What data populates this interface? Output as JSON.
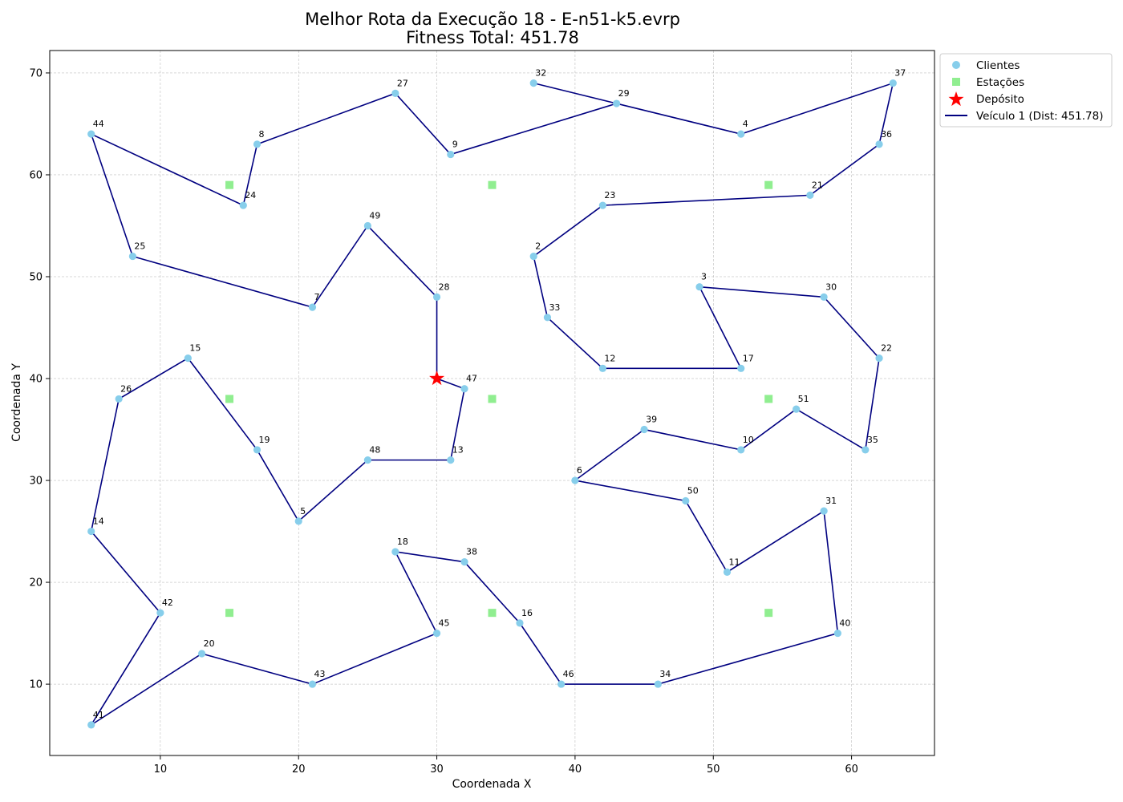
{
  "colors": {
    "clients": "#87ceeb",
    "stations": "#90ee90",
    "depot": "#ff0000",
    "route": "#000080",
    "grid": "#b0b0b0"
  },
  "chart_data": {
    "type": "scatter",
    "title_line1": "Melhor Rota da Execução 18 - E-n51-k5.evrp",
    "title_line2": "Fitness Total: 451.78",
    "xlabel": "Coordenada X",
    "ylabel": "Coordenada Y",
    "xlim": [
      2.0,
      66.0
    ],
    "ylim": [
      3.0,
      72.2
    ],
    "xticks": [
      10,
      20,
      30,
      40,
      50,
      60
    ],
    "yticks": [
      10,
      20,
      30,
      40,
      50,
      60,
      70
    ],
    "grid": true,
    "legend": {
      "placement": "outside-top-right",
      "entries": [
        {
          "key": "clients",
          "label": "Clientes"
        },
        {
          "key": "stations",
          "label": "Estações"
        },
        {
          "key": "depot",
          "label": "Depósito"
        },
        {
          "key": "route",
          "label": "Veículo 1 (Dist: 451.78)"
        }
      ]
    },
    "depot": {
      "x": 30,
      "y": 40
    },
    "stations": [
      {
        "x": 15,
        "y": 59
      },
      {
        "x": 34,
        "y": 59
      },
      {
        "x": 54,
        "y": 59
      },
      {
        "x": 15,
        "y": 38
      },
      {
        "x": 34,
        "y": 38
      },
      {
        "x": 54,
        "y": 38
      },
      {
        "x": 15,
        "y": 17
      },
      {
        "x": 34,
        "y": 17
      },
      {
        "x": 54,
        "y": 17
      }
    ],
    "clients": [
      {
        "id": "2",
        "x": 37,
        "y": 52
      },
      {
        "id": "3",
        "x": 49,
        "y": 49
      },
      {
        "id": "4",
        "x": 52,
        "y": 64
      },
      {
        "id": "5",
        "x": 20,
        "y": 26
      },
      {
        "id": "6",
        "x": 40,
        "y": 30
      },
      {
        "id": "7",
        "x": 21,
        "y": 47
      },
      {
        "id": "8",
        "x": 17,
        "y": 63
      },
      {
        "id": "9",
        "x": 31,
        "y": 62
      },
      {
        "id": "10",
        "x": 52,
        "y": 33
      },
      {
        "id": "11",
        "x": 51,
        "y": 21
      },
      {
        "id": "12",
        "x": 42,
        "y": 41
      },
      {
        "id": "13",
        "x": 31,
        "y": 32
      },
      {
        "id": "14",
        "x": 5,
        "y": 25
      },
      {
        "id": "15",
        "x": 12,
        "y": 42
      },
      {
        "id": "16",
        "x": 36,
        "y": 16
      },
      {
        "id": "17",
        "x": 52,
        "y": 41
      },
      {
        "id": "18",
        "x": 27,
        "y": 23
      },
      {
        "id": "19",
        "x": 17,
        "y": 33
      },
      {
        "id": "20",
        "x": 13,
        "y": 13
      },
      {
        "id": "21",
        "x": 57,
        "y": 58
      },
      {
        "id": "22",
        "x": 62,
        "y": 42
      },
      {
        "id": "23",
        "x": 42,
        "y": 57
      },
      {
        "id": "24",
        "x": 16,
        "y": 57
      },
      {
        "id": "25",
        "x": 8,
        "y": 52
      },
      {
        "id": "26",
        "x": 7,
        "y": 38
      },
      {
        "id": "27",
        "x": 27,
        "y": 68
      },
      {
        "id": "28",
        "x": 30,
        "y": 48
      },
      {
        "id": "29",
        "x": 43,
        "y": 67
      },
      {
        "id": "30",
        "x": 58,
        "y": 48
      },
      {
        "id": "31",
        "x": 58,
        "y": 27
      },
      {
        "id": "32",
        "x": 37,
        "y": 69
      },
      {
        "id": "33",
        "x": 38,
        "y": 46
      },
      {
        "id": "34",
        "x": 46,
        "y": 10
      },
      {
        "id": "35",
        "x": 61,
        "y": 33
      },
      {
        "id": "36",
        "x": 62,
        "y": 63
      },
      {
        "id": "37",
        "x": 63,
        "y": 69
      },
      {
        "id": "38",
        "x": 32,
        "y": 22
      },
      {
        "id": "39",
        "x": 45,
        "y": 35
      },
      {
        "id": "40",
        "x": 59,
        "y": 15
      },
      {
        "id": "41",
        "x": 5,
        "y": 6
      },
      {
        "id": "42",
        "x": 10,
        "y": 17
      },
      {
        "id": "43",
        "x": 21,
        "y": 10
      },
      {
        "id": "44",
        "x": 5,
        "y": 64
      },
      {
        "id": "45",
        "x": 30,
        "y": 15
      },
      {
        "id": "46",
        "x": 39,
        "y": 10
      },
      {
        "id": "47",
        "x": 32,
        "y": 39
      },
      {
        "id": "48",
        "x": 25,
        "y": 32
      },
      {
        "id": "49",
        "x": 25,
        "y": 55
      },
      {
        "id": "50",
        "x": 48,
        "y": 28
      },
      {
        "id": "51",
        "x": 56,
        "y": 37
      }
    ],
    "series": [
      {
        "name": "Veículo 1 (Dist: 451.78)",
        "route": [
          "depot",
          "28",
          "49",
          "7",
          "25",
          "44",
          "24",
          "8",
          "27",
          "9",
          "29",
          "32",
          "29",
          "4",
          "37",
          "36",
          "21",
          "23",
          "2",
          "33",
          "12",
          "17",
          "3",
          "30",
          "22",
          "35",
          "51",
          "10",
          "39",
          "6",
          "50",
          "11",
          "31",
          "40",
          "34",
          "46",
          "16",
          "38",
          "18",
          "45",
          "43",
          "20",
          "41",
          "42",
          "14",
          "26",
          "15",
          "19",
          "5",
          "48",
          "13",
          "47",
          "depot"
        ]
      }
    ]
  }
}
